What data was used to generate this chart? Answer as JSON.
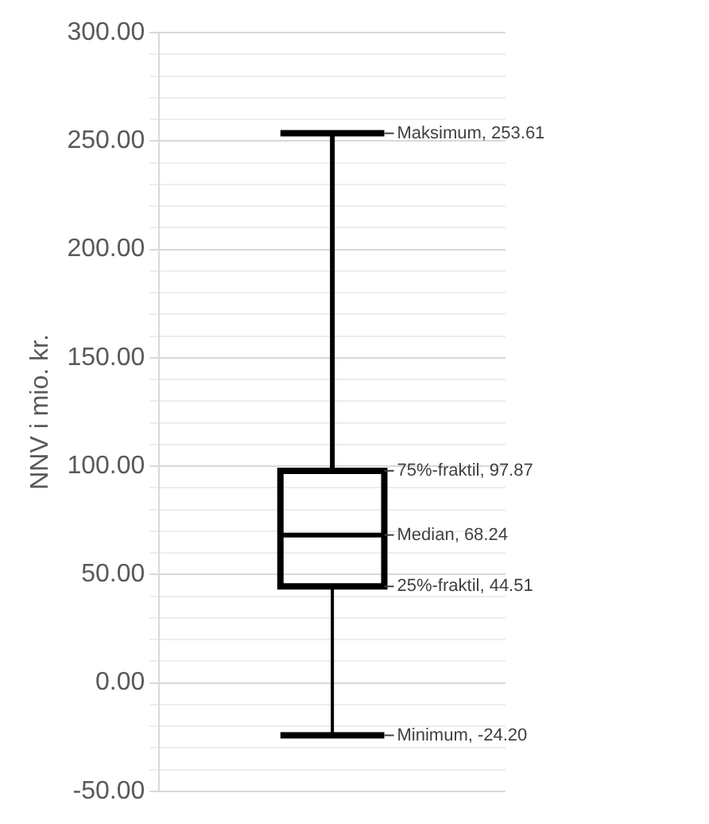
{
  "chart_data": {
    "type": "box",
    "ylabel": "NNV i mio. kr.",
    "categories": [
      null
    ],
    "boxes": [
      {
        "low": -24.2,
        "q1": 44.51,
        "median": 68.24,
        "q3": 97.87,
        "high": 253.61
      }
    ],
    "color": "#000000",
    "ylim": [
      -50,
      300
    ],
    "yticks": [
      {
        "value": -50,
        "label": "-50.00"
      },
      {
        "value": -40,
        "label": null
      },
      {
        "value": -30,
        "label": null
      },
      {
        "value": -20,
        "label": null
      },
      {
        "value": -10,
        "label": null
      },
      {
        "value": 0,
        "label": "0.00"
      },
      {
        "value": 10,
        "label": null
      },
      {
        "value": 20,
        "label": null
      },
      {
        "value": 30,
        "label": null
      },
      {
        "value": 40,
        "label": null
      },
      {
        "value": 50,
        "label": "50.00"
      },
      {
        "value": 60,
        "label": null
      },
      {
        "value": 70,
        "label": null
      },
      {
        "value": 80,
        "label": null
      },
      {
        "value": 90,
        "label": null
      },
      {
        "value": 100,
        "label": "100.00"
      },
      {
        "value": 110,
        "label": null
      },
      {
        "value": 120,
        "label": null
      },
      {
        "value": 130,
        "label": null
      },
      {
        "value": 140,
        "label": null
      },
      {
        "value": 150,
        "label": "150.00"
      },
      {
        "value": 160,
        "label": null
      },
      {
        "value": 170,
        "label": null
      },
      {
        "value": 180,
        "label": null
      },
      {
        "value": 190,
        "label": null
      },
      {
        "value": 200,
        "label": "200.00"
      },
      {
        "value": 210,
        "label": null
      },
      {
        "value": 220,
        "label": null
      },
      {
        "value": 230,
        "label": null
      },
      {
        "value": 240,
        "label": null
      },
      {
        "value": 250,
        "label": "250.00"
      },
      {
        "value": 260,
        "label": null
      },
      {
        "value": 270,
        "label": null
      },
      {
        "value": 280,
        "label": null
      },
      {
        "value": 290,
        "label": null
      },
      {
        "value": 300,
        "label": "300.00"
      }
    ],
    "grid": true,
    "annotations": [
      "Maksimum, 253.61",
      "75%-fraktil, 97.87",
      "Median, 68.24",
      "25%-fraktil, 44.51",
      "Minimum, -24.20"
    ]
  }
}
